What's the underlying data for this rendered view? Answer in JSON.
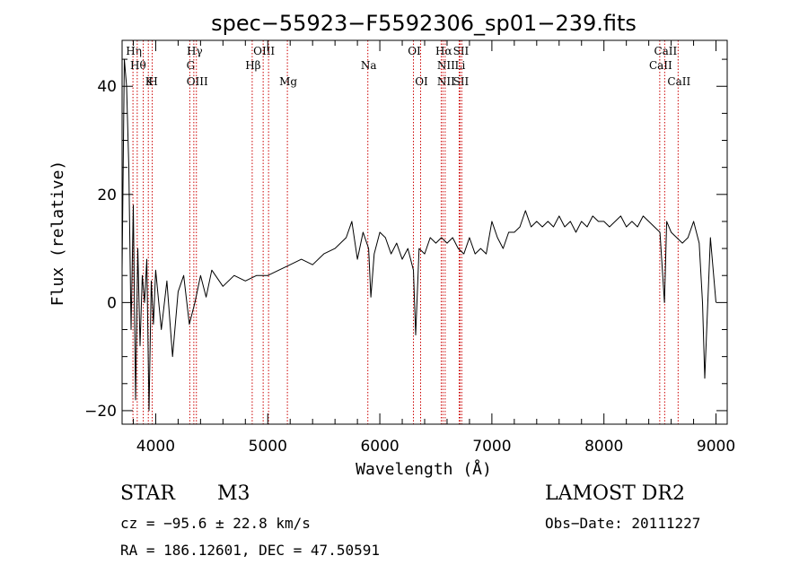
{
  "chart_data": {
    "type": "line",
    "title": "spec−55923−F5592306_sp01−239.fits",
    "xlabel": "Wavelength (Å)",
    "ylabel": "Flux (relative)",
    "xlim": [
      3700,
      9100
    ],
    "ylim": [
      -22.5,
      48.5
    ],
    "xticks": [
      4000,
      5000,
      6000,
      7000,
      8000,
      9000
    ],
    "xtick_labels": [
      "4000",
      "5000",
      "6000",
      "7000",
      "8000",
      "9000"
    ],
    "yticks": [
      -20,
      0,
      20,
      40
    ],
    "ytick_labels": [
      "−20",
      "0",
      "20",
      "40"
    ],
    "series": [
      {
        "x": [
          3700,
          3720,
          3740,
          3760,
          3780,
          3800,
          3820,
          3840,
          3860,
          3880,
          3900,
          3920,
          3940,
          3960,
          3980,
          4000,
          4050,
          4100,
          4150,
          4200,
          4250,
          4300,
          4350,
          4400,
          4450,
          4500,
          4600,
          4700,
          4800,
          4900,
          5000,
          5100,
          5200,
          5300,
          5400,
          5500,
          5600,
          5700,
          5750,
          5800,
          5850,
          5900,
          5920,
          5950,
          6000,
          6050,
          6100,
          6150,
          6200,
          6250,
          6300,
          6320,
          6350,
          6400,
          6450,
          6500,
          6550,
          6600,
          6650,
          6700,
          6750,
          6800,
          6850,
          6900,
          6950,
          7000,
          7050,
          7100,
          7150,
          7200,
          7250,
          7300,
          7350,
          7400,
          7450,
          7500,
          7550,
          7600,
          7650,
          7700,
          7750,
          7800,
          7850,
          7900,
          7950,
          8000,
          8050,
          8100,
          8150,
          8200,
          8250,
          8300,
          8350,
          8400,
          8450,
          8500,
          8540,
          8560,
          8600,
          8650,
          8700,
          8750,
          8800,
          8850,
          8880,
          8900,
          8950,
          9000
        ],
        "y": [
          6,
          45,
          40,
          25,
          -5,
          18,
          -18,
          10,
          -8,
          5,
          0,
          8,
          -20,
          4,
          -4,
          6,
          -5,
          4,
          -10,
          2,
          5,
          -4,
          0,
          5,
          1,
          6,
          3,
          5,
          4,
          5,
          5,
          6,
          7,
          8,
          7,
          9,
          10,
          12,
          15,
          8,
          13,
          10,
          1,
          9,
          13,
          12,
          9,
          11,
          8,
          10,
          6,
          -6,
          10,
          9,
          12,
          11,
          12,
          11,
          12,
          10,
          9,
          12,
          9,
          10,
          9,
          15,
          12,
          10,
          13,
          13,
          14,
          17,
          14,
          15,
          14,
          15,
          14,
          16,
          14,
          15,
          13,
          15,
          14,
          16,
          15,
          15,
          14,
          15,
          16,
          14,
          15,
          14,
          16,
          15,
          14,
          13,
          0,
          15,
          13,
          12,
          11,
          12,
          15,
          11,
          0,
          -14,
          12,
          0
        ]
      }
    ],
    "lines": [
      {
        "x": 3797,
        "labels": [
          "Hη",
          "",
          ""
        ]
      },
      {
        "x": 3835,
        "labels": [
          "",
          "Hθ",
          ""
        ]
      },
      {
        "x": 3889,
        "labels": [
          "",
          "",
          ""
        ]
      },
      {
        "x": 3934,
        "labels": [
          "",
          "",
          "K"
        ]
      },
      {
        "x": 3969,
        "labels": [
          "",
          "",
          "H"
        ]
      },
      {
        "x": 4304,
        "labels": [
          "",
          "G",
          ""
        ]
      },
      {
        "x": 4340,
        "labels": [
          "Hγ",
          "",
          ""
        ]
      },
      {
        "x": 4363,
        "labels": [
          "",
          "",
          "OIII"
        ]
      },
      {
        "x": 4861,
        "labels": [
          "",
          "Hβ",
          ""
        ]
      },
      {
        "x": 4959,
        "labels": [
          "OIII",
          "",
          ""
        ]
      },
      {
        "x": 5007,
        "labels": [
          "",
          "",
          ""
        ]
      },
      {
        "x": 5175,
        "labels": [
          "",
          "",
          "Mg"
        ]
      },
      {
        "x": 5893,
        "labels": [
          "",
          "Na",
          ""
        ]
      },
      {
        "x": 6300,
        "labels": [
          "OI",
          "",
          ""
        ]
      },
      {
        "x": 6364,
        "labels": [
          "",
          "",
          "OI"
        ]
      },
      {
        "x": 6548,
        "labels": [
          "",
          "",
          ""
        ]
      },
      {
        "x": 6563,
        "labels": [
          "Hα",
          "",
          ""
        ]
      },
      {
        "x": 6583,
        "labels": [
          "",
          "NII",
          "NII"
        ]
      },
      {
        "x": 6708,
        "labels": [
          "",
          "Li",
          ""
        ]
      },
      {
        "x": 6716,
        "labels": [
          "SII",
          "",
          "SII"
        ]
      },
      {
        "x": 6731,
        "labels": [
          "",
          "",
          ""
        ]
      },
      {
        "x": 8498,
        "labels": [
          "",
          "CaII",
          ""
        ]
      },
      {
        "x": 8542,
        "labels": [
          "CaII",
          "",
          ""
        ]
      },
      {
        "x": 8662,
        "labels": [
          "",
          "",
          "CaII"
        ]
      }
    ]
  },
  "info": {
    "class_label": "STAR",
    "subclass_label": "M3",
    "cz_line": "cz = −95.6 ± 22.8 km/s",
    "radec_line": "RA = 186.12601, DEC =  47.50591",
    "survey_label": "LAMOST DR2",
    "obs_date_line": "Obs−Date: 20111227"
  },
  "colors": {
    "spectrum": "#000000",
    "line_marker": "#cc0000",
    "axes": "#000000"
  }
}
